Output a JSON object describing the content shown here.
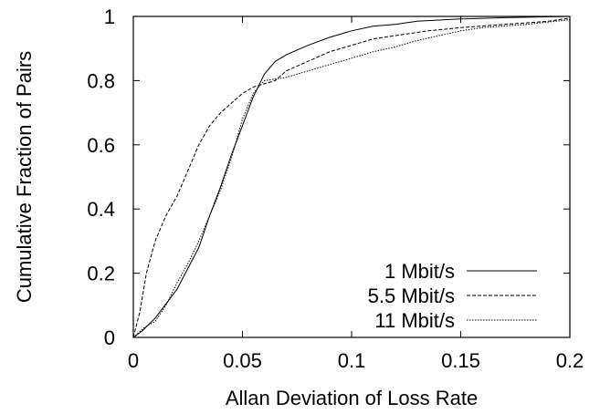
{
  "chart_data": {
    "type": "line",
    "title": "",
    "xlabel": "Allan Deviation of Loss Rate",
    "ylabel": "Cumulative Fraction of Pairs",
    "xlim": [
      0,
      0.2
    ],
    "ylim": [
      0,
      1
    ],
    "x_ticks": [
      "0",
      "0.05",
      "0.1",
      "0.15",
      "0.2"
    ],
    "y_ticks": [
      "0",
      "0.2",
      "0.4",
      "0.6",
      "0.8",
      "1"
    ],
    "x_tick_values": [
      0,
      0.05,
      0.1,
      0.15,
      0.2
    ],
    "y_tick_values": [
      0,
      0.2,
      0.4,
      0.6,
      0.8,
      1
    ],
    "grid": false,
    "legend_position": "bottom-right",
    "series": [
      {
        "name": "1 Mbit/s",
        "style": "solid",
        "color": "#000000",
        "points": [
          [
            0,
            0
          ],
          [
            0.004,
            0.02
          ],
          [
            0.01,
            0.06
          ],
          [
            0.02,
            0.15
          ],
          [
            0.03,
            0.28
          ],
          [
            0.035,
            0.38
          ],
          [
            0.04,
            0.47
          ],
          [
            0.045,
            0.57
          ],
          [
            0.05,
            0.66
          ],
          [
            0.055,
            0.75
          ],
          [
            0.06,
            0.82
          ],
          [
            0.065,
            0.86
          ],
          [
            0.07,
            0.88
          ],
          [
            0.08,
            0.91
          ],
          [
            0.09,
            0.935
          ],
          [
            0.1,
            0.955
          ],
          [
            0.11,
            0.97
          ],
          [
            0.12,
            0.975
          ],
          [
            0.13,
            0.985
          ],
          [
            0.15,
            0.992
          ],
          [
            0.17,
            0.996
          ],
          [
            0.2,
            1.0
          ]
        ]
      },
      {
        "name": "5.5 Mbit/s",
        "style": "dashed",
        "color": "#000000",
        "points": [
          [
            0,
            0
          ],
          [
            0.003,
            0.08
          ],
          [
            0.006,
            0.2
          ],
          [
            0.01,
            0.3
          ],
          [
            0.015,
            0.38
          ],
          [
            0.02,
            0.44
          ],
          [
            0.025,
            0.52
          ],
          [
            0.03,
            0.6
          ],
          [
            0.035,
            0.66
          ],
          [
            0.04,
            0.7
          ],
          [
            0.045,
            0.73
          ],
          [
            0.05,
            0.76
          ],
          [
            0.055,
            0.78
          ],
          [
            0.06,
            0.79
          ],
          [
            0.065,
            0.8
          ],
          [
            0.07,
            0.83
          ],
          [
            0.08,
            0.86
          ],
          [
            0.09,
            0.89
          ],
          [
            0.1,
            0.91
          ],
          [
            0.11,
            0.93
          ],
          [
            0.12,
            0.94
          ],
          [
            0.135,
            0.955
          ],
          [
            0.15,
            0.965
          ],
          [
            0.17,
            0.975
          ],
          [
            0.19,
            0.985
          ],
          [
            0.2,
            0.995
          ]
        ]
      },
      {
        "name": "11 Mbit/s",
        "style": "dotted",
        "color": "#000000",
        "points": [
          [
            0,
            0
          ],
          [
            0.005,
            0.03
          ],
          [
            0.01,
            0.05
          ],
          [
            0.015,
            0.1
          ],
          [
            0.02,
            0.17
          ],
          [
            0.025,
            0.23
          ],
          [
            0.03,
            0.3
          ],
          [
            0.035,
            0.38
          ],
          [
            0.04,
            0.46
          ],
          [
            0.045,
            0.56
          ],
          [
            0.05,
            0.68
          ],
          [
            0.055,
            0.76
          ],
          [
            0.06,
            0.8
          ],
          [
            0.07,
            0.81
          ],
          [
            0.08,
            0.83
          ],
          [
            0.09,
            0.85
          ],
          [
            0.1,
            0.87
          ],
          [
            0.11,
            0.89
          ],
          [
            0.12,
            0.905
          ],
          [
            0.13,
            0.925
          ],
          [
            0.14,
            0.94
          ],
          [
            0.15,
            0.955
          ],
          [
            0.16,
            0.965
          ],
          [
            0.18,
            0.975
          ],
          [
            0.2,
            0.99
          ]
        ]
      }
    ]
  }
}
